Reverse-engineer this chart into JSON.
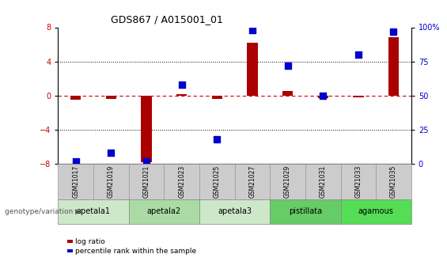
{
  "title": "GDS867 / A015001_01",
  "samples": [
    "GSM21017",
    "GSM21019",
    "GSM21021",
    "GSM21023",
    "GSM21025",
    "GSM21027",
    "GSM21029",
    "GSM21031",
    "GSM21033",
    "GSM21035"
  ],
  "log_ratio": [
    -0.5,
    -0.4,
    -7.8,
    0.2,
    -0.4,
    6.2,
    0.5,
    -0.3,
    -0.2,
    6.8
  ],
  "percentile_rank": [
    2,
    8,
    2,
    58,
    18,
    98,
    72,
    50,
    80,
    97
  ],
  "groups": [
    {
      "label": "apetala1",
      "samples": [
        "GSM21017",
        "GSM21019"
      ],
      "color": "#cce8c8"
    },
    {
      "label": "apetala2",
      "samples": [
        "GSM21021",
        "GSM21023"
      ],
      "color": "#aadba4"
    },
    {
      "label": "apetala3",
      "samples": [
        "GSM21025",
        "GSM21027"
      ],
      "color": "#cce8c8"
    },
    {
      "label": "pistillata",
      "samples": [
        "GSM21029",
        "GSM21031"
      ],
      "color": "#66cc66"
    },
    {
      "label": "agamous",
      "samples": [
        "GSM21033",
        "GSM21035"
      ],
      "color": "#55dd55"
    }
  ],
  "ylim_left": [
    -8,
    8
  ],
  "ylim_right": [
    0,
    100
  ],
  "yticks_left": [
    -8,
    -4,
    0,
    4,
    8
  ],
  "yticks_right": [
    0,
    25,
    50,
    75,
    100
  ],
  "bar_color": "#aa0000",
  "dot_color": "#0000cc",
  "hline_color": "#cc0000",
  "dotline_color": "#000000",
  "background_color": "#ffffff",
  "sample_box_color": "#cccccc",
  "group_label": "genotype/variation",
  "legend_items": [
    {
      "label": "log ratio",
      "color": "#aa0000"
    },
    {
      "label": "percentile rank within the sample",
      "color": "#0000cc"
    }
  ],
  "bar_width": 0.3,
  "dot_size": 28
}
